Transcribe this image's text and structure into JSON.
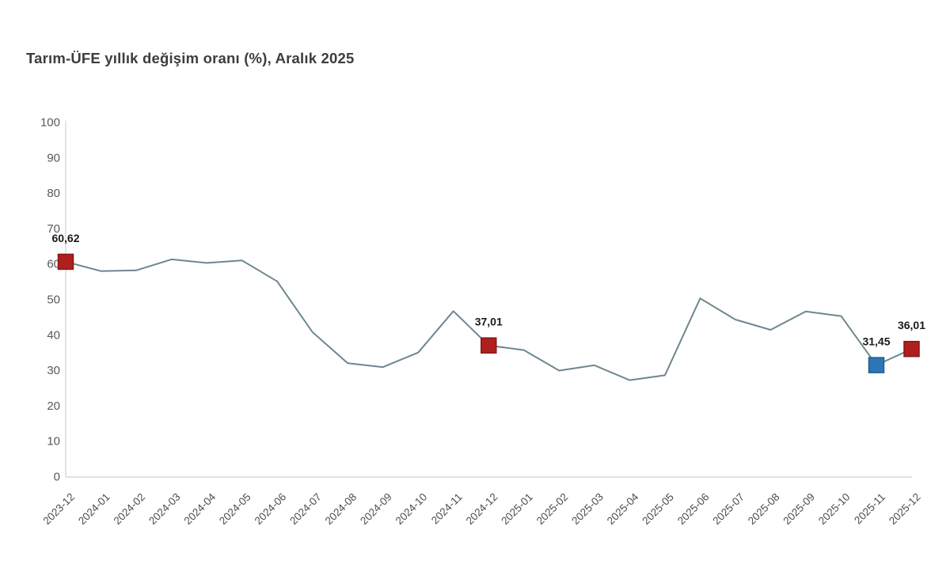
{
  "chart_data": {
    "type": "line",
    "title": "Tarım-ÜFE yıllık değişim oranı (%), Aralık 2025",
    "xlabel": "",
    "ylabel": "",
    "ylim": [
      0,
      100
    ],
    "ytick_step": 10,
    "grid": false,
    "legend": "none",
    "categories": [
      "2023-12",
      "2024-01",
      "2024-02",
      "2024-03",
      "2024-04",
      "2024-05",
      "2024-06",
      "2024-07",
      "2024-08",
      "2024-09",
      "2024-10",
      "2024-11",
      "2024-12",
      "2025-01",
      "2025-02",
      "2025-03",
      "2025-04",
      "2025-05",
      "2025-06",
      "2025-07",
      "2025-08",
      "2025-09",
      "2025-10",
      "2025-11",
      "2025-12"
    ],
    "values": [
      60.62,
      58.0,
      58.2,
      61.3,
      60.3,
      61.0,
      55.1,
      40.8,
      32.0,
      30.9,
      35.0,
      46.7,
      37.01,
      35.7,
      29.9,
      31.4,
      27.2,
      28.6,
      50.3,
      44.3,
      41.4,
      46.6,
      45.3,
      31.45,
      36.01
    ],
    "highlights": [
      {
        "category": "2023-12",
        "index": 0,
        "label": "60,62",
        "marker": "square",
        "fill": "#b01f1f",
        "stroke": "#871616"
      },
      {
        "category": "2024-12",
        "index": 12,
        "label": "37,01",
        "marker": "square",
        "fill": "#b01f1f",
        "stroke": "#871616"
      },
      {
        "category": "2025-11",
        "index": 23,
        "label": "31,45",
        "marker": "square",
        "fill": "#2e75b5",
        "stroke": "#1d5a92"
      },
      {
        "category": "2025-12",
        "index": 24,
        "label": "36,01",
        "marker": "square",
        "fill": "#b01f1f",
        "stroke": "#871616"
      }
    ],
    "colors": {
      "line": "#6e878f",
      "axis": "#d9d9d9",
      "y_tick_label": "#595959",
      "x_tick_label": "#4d4d4d",
      "data_label": "#1a1a1a",
      "title": "#3d3d3d",
      "background": "#ffffff"
    }
  }
}
